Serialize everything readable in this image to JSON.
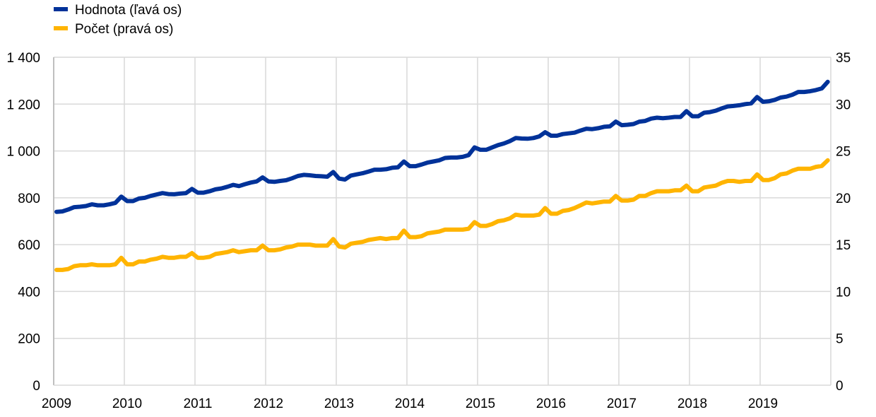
{
  "chart_data": {
    "type": "line",
    "title": "",
    "legend_position": "top-left",
    "grid": true,
    "x_tick_labels": [
      "2009",
      "2010",
      "2011",
      "2012",
      "2013",
      "2014",
      "2015",
      "2016",
      "2017",
      "2018",
      "2019"
    ],
    "x_range": [
      "2009-01",
      "2019-12"
    ],
    "left_axis": {
      "ylim": [
        0,
        1400
      ],
      "ticks": [
        0,
        200,
        400,
        600,
        800,
        1000,
        1200,
        1400
      ],
      "tick_labels": [
        "0",
        "200",
        "400",
        "600",
        "800",
        "1 000",
        "1 200",
        "1 400"
      ]
    },
    "right_axis": {
      "ylim": [
        0,
        35
      ],
      "ticks": [
        0,
        5,
        10,
        15,
        20,
        25,
        30,
        35
      ],
      "tick_labels": [
        "0",
        "5",
        "10",
        "15",
        "20",
        "25",
        "30",
        "35"
      ]
    },
    "frequency": "monthly",
    "series": [
      {
        "name": "Hodnota (ľavá os)",
        "axis": "left",
        "color": "#003299",
        "values": [
          740,
          742,
          750,
          760,
          762,
          765,
          772,
          768,
          768,
          772,
          778,
          805,
          786,
          786,
          797,
          800,
          808,
          814,
          820,
          816,
          815,
          818,
          820,
          838,
          822,
          822,
          828,
          836,
          840,
          847,
          855,
          850,
          858,
          865,
          870,
          887,
          870,
          868,
          872,
          875,
          883,
          893,
          898,
          896,
          893,
          892,
          890,
          910,
          882,
          878,
          895,
          900,
          905,
          912,
          920,
          920,
          922,
          928,
          930,
          955,
          935,
          935,
          942,
          950,
          955,
          960,
          970,
          972,
          972,
          975,
          982,
          1015,
          1005,
          1005,
          1015,
          1025,
          1032,
          1042,
          1055,
          1053,
          1052,
          1055,
          1062,
          1080,
          1065,
          1065,
          1072,
          1075,
          1078,
          1087,
          1095,
          1093,
          1097,
          1103,
          1105,
          1125,
          1110,
          1112,
          1115,
          1125,
          1128,
          1138,
          1142,
          1140,
          1142,
          1145,
          1145,
          1170,
          1148,
          1148,
          1163,
          1166,
          1172,
          1182,
          1190,
          1192,
          1195,
          1200,
          1203,
          1230,
          1210,
          1212,
          1218,
          1228,
          1232,
          1240,
          1252,
          1252,
          1255,
          1260,
          1267,
          1295
        ]
      },
      {
        "name": "Počet (pravá os)",
        "axis": "right",
        "color": "#FFB400",
        "values": [
          12.3,
          12.3,
          12.4,
          12.7,
          12.8,
          12.8,
          12.9,
          12.8,
          12.8,
          12.8,
          12.9,
          13.6,
          12.9,
          12.9,
          13.2,
          13.2,
          13.4,
          13.5,
          13.7,
          13.6,
          13.6,
          13.7,
          13.7,
          14.1,
          13.6,
          13.6,
          13.7,
          14.0,
          14.1,
          14.2,
          14.4,
          14.2,
          14.3,
          14.4,
          14.4,
          14.9,
          14.4,
          14.4,
          14.5,
          14.7,
          14.8,
          15.0,
          15.0,
          15.0,
          14.9,
          14.9,
          14.9,
          15.6,
          14.8,
          14.7,
          15.1,
          15.2,
          15.3,
          15.5,
          15.6,
          15.7,
          15.6,
          15.7,
          15.7,
          16.5,
          15.8,
          15.8,
          15.9,
          16.2,
          16.3,
          16.4,
          16.6,
          16.6,
          16.6,
          16.6,
          16.7,
          17.4,
          17.0,
          17.0,
          17.2,
          17.5,
          17.6,
          17.8,
          18.2,
          18.1,
          18.1,
          18.1,
          18.2,
          18.9,
          18.3,
          18.3,
          18.6,
          18.7,
          18.9,
          19.2,
          19.5,
          19.4,
          19.5,
          19.6,
          19.6,
          20.2,
          19.7,
          19.7,
          19.8,
          20.2,
          20.2,
          20.5,
          20.7,
          20.7,
          20.7,
          20.8,
          20.8,
          21.3,
          20.7,
          20.7,
          21.1,
          21.2,
          21.3,
          21.6,
          21.8,
          21.8,
          21.7,
          21.8,
          21.8,
          22.5,
          21.9,
          21.9,
          22.1,
          22.5,
          22.6,
          22.9,
          23.1,
          23.1,
          23.1,
          23.3,
          23.4,
          24.0
        ]
      }
    ]
  }
}
